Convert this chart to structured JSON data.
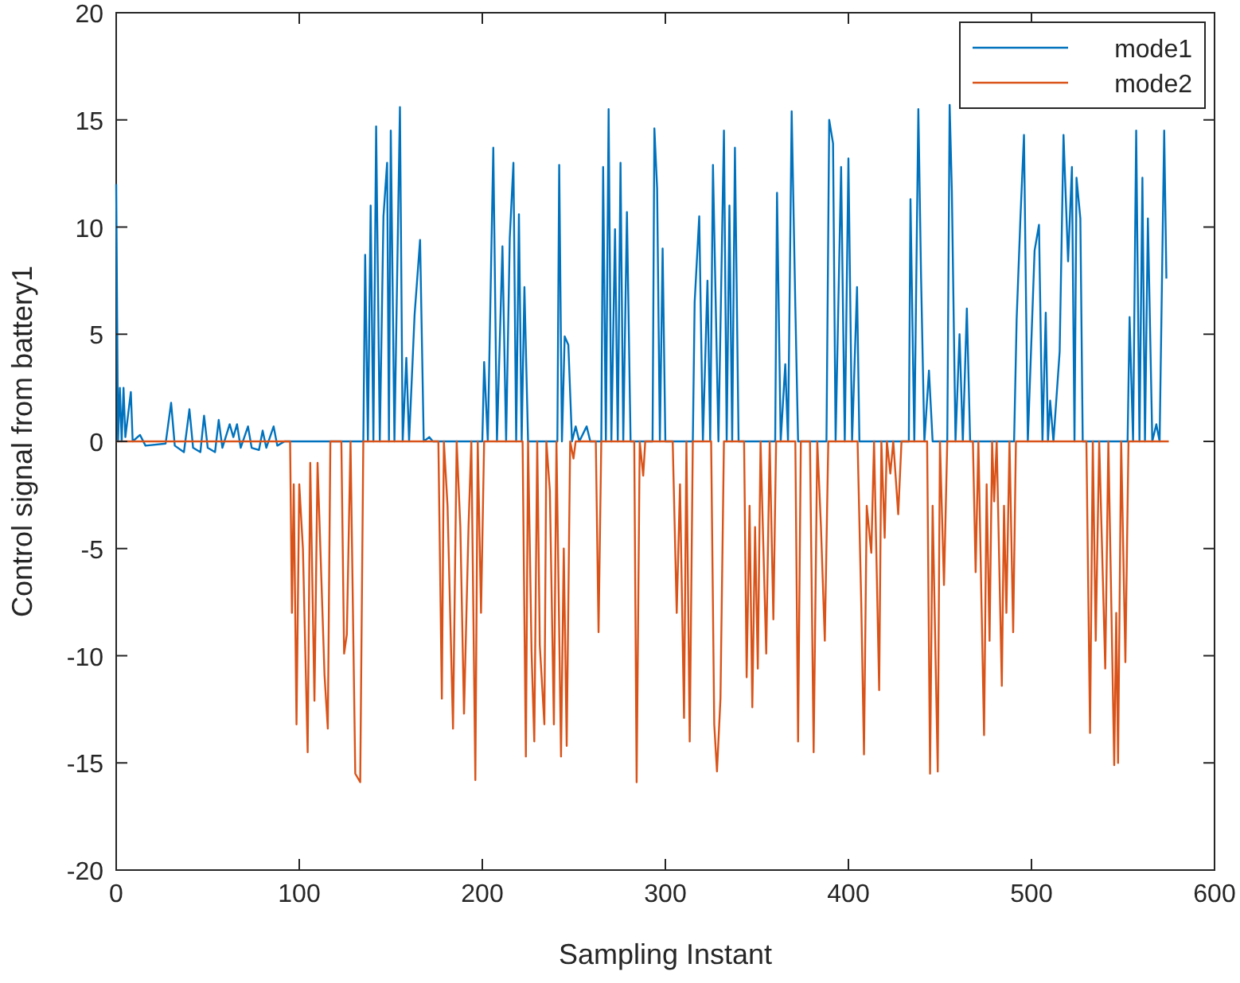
{
  "chart_data": {
    "type": "line",
    "xlabel": "Sampling Instant",
    "ylabel": "Control signal from battery1",
    "xlim": [
      0,
      600
    ],
    "ylim": [
      -20,
      20
    ],
    "xticks": [
      0,
      100,
      200,
      300,
      400,
      500,
      600
    ],
    "yticks": [
      -20,
      -15,
      -10,
      -5,
      0,
      5,
      10,
      15,
      20
    ],
    "legend": "top right",
    "series": [
      {
        "name": "mode1",
        "color": "#0072bd",
        "x": [
          0,
          1,
          2,
          3,
          4,
          5,
          8,
          9,
          13,
          16,
          27,
          30,
          32,
          37,
          40,
          42,
          46,
          48,
          50,
          54,
          56,
          58,
          62,
          64,
          66,
          68,
          72,
          74,
          78,
          80,
          82,
          86,
          88,
          92,
          135,
          136,
          137.5,
          139,
          140.5,
          142,
          144,
          146,
          148,
          149,
          150,
          152,
          155,
          156.5,
          158.5,
          160,
          163,
          166,
          168,
          171,
          173,
          200,
          201,
          203,
          206,
          208,
          211,
          213,
          215,
          217,
          218.5,
          220,
          221.5,
          223,
          225,
          241,
          242,
          243.5,
          245,
          247,
          249,
          251,
          253,
          257,
          259,
          265,
          266,
          267.5,
          269,
          270.5,
          272.5,
          274,
          275.5,
          277,
          279,
          281,
          293,
          294,
          295.5,
          297,
          298.5,
          300,
          315,
          316,
          318.5,
          320.5,
          323,
          324.5,
          326,
          329,
          332,
          333.5,
          335,
          336.5,
          338,
          340,
          360,
          361,
          363,
          365.5,
          367,
          369,
          371,
          372.5,
          388,
          389.5,
          391.6,
          393,
          396,
          398,
          400,
          402,
          404.7,
          406,
          433,
          433.9,
          436,
          438.2,
          439.7,
          441.5,
          444,
          446,
          454,
          455.3,
          456.5,
          458.5,
          460.7,
          462.5,
          464.7,
          466.5,
          490.5,
          491.9,
          494,
          495.9,
          498,
          501.7,
          504.1,
          506,
          507.8,
          509,
          510.2,
          512,
          515.4,
          517.5,
          520,
          522.1,
          523.5,
          524.6,
          526.7,
          528,
          552.5,
          553.6,
          555.5,
          557.2,
          559,
          560.6,
          562,
          563.6,
          566,
          568.2,
          570,
          572.5,
          573.7
        ],
        "values": [
          12,
          0,
          2.5,
          0,
          2.5,
          0.2,
          2.3,
          0,
          0.3,
          -0.2,
          -0.1,
          1.8,
          -0.2,
          -0.5,
          1.5,
          -0.3,
          -0.5,
          1.2,
          -0.3,
          -0.5,
          1,
          -0.3,
          0.8,
          0.2,
          0.8,
          -0.3,
          0.7,
          -0.3,
          -0.4,
          0.5,
          -0.3,
          0.7,
          -0.2,
          0,
          0,
          8.7,
          0,
          11,
          0,
          14.7,
          0,
          10.5,
          13,
          0,
          14.5,
          0,
          15.6,
          0,
          3.9,
          0,
          5.9,
          9.4,
          0,
          0.2,
          0,
          0,
          3.7,
          0,
          13.7,
          0,
          9.1,
          0,
          9.5,
          13,
          0,
          10.6,
          0,
          7.2,
          0,
          0,
          12.9,
          0,
          4.9,
          4.5,
          0,
          0.7,
          0,
          0.7,
          0,
          0,
          12.8,
          0,
          15.5,
          0,
          9.9,
          0,
          13,
          0,
          10.7,
          0,
          0,
          14.6,
          11.8,
          0,
          9,
          0,
          0,
          6.5,
          10.5,
          0,
          7.5,
          0,
          12.9,
          0,
          14.5,
          0,
          11,
          0,
          13.7,
          0,
          0,
          11.6,
          0,
          3.6,
          0,
          15.4,
          6.3,
          0,
          0,
          15,
          13.9,
          0,
          12.8,
          0,
          13.2,
          0,
          7.2,
          0,
          0,
          11.3,
          0,
          15.5,
          7.6,
          0,
          3.3,
          0,
          0,
          15.7,
          11.7,
          0,
          5,
          0,
          6.2,
          0,
          0,
          5.7,
          10.5,
          14.3,
          0,
          8.9,
          10.1,
          0,
          6,
          0,
          1.9,
          0,
          4.2,
          14.3,
          8.4,
          12.8,
          0,
          12.3,
          10.4,
          0,
          0,
          5.8,
          0,
          14.5,
          0,
          12.3,
          0,
          10.4,
          0,
          0.8,
          0,
          14.5,
          7.6
        ]
      },
      {
        "name": "mode2",
        "color": "#d95319",
        "x": [
          0,
          95,
          96,
          97,
          98.5,
          100,
          102,
          104.6,
          106,
          108.3,
          110,
          113.8,
          115.6,
          117,
          123,
          124.5,
          126,
          128,
          130.6,
          133.3,
          135,
          176,
          177.9,
          179,
          181,
          184,
          186,
          188,
          190,
          192.5,
          194,
          196.2,
          197.5,
          199.3,
          201,
          222,
          223.8,
          225,
          226.9,
          228.4,
          230,
          231.4,
          233.9,
          235,
          236.9,
          239.1,
          240.5,
          243,
          244.5,
          246.1,
          248,
          249.8,
          251,
          262,
          263.5,
          265,
          283,
          284.3,
          286,
          287.9,
          289,
          304,
          306.2,
          308,
          310.2,
          311.5,
          313.3,
          315,
          325,
          326.7,
          328.2,
          330.1,
          332,
          343,
          344.4,
          346,
          347.5,
          349,
          350.5,
          352,
          355.1,
          357,
          359,
          360.5,
          371,
          372.5,
          374,
          379,
          381,
          383,
          385,
          387.1,
          389,
          405,
          407,
          408.5,
          410,
          412.5,
          414,
          416.8,
          418,
          419.8,
          421,
          422.9,
          424.5,
          427.2,
          429,
          443,
          444.6,
          446,
          448.8,
          450,
          452.2,
          454,
          468,
          469.5,
          471,
          474.1,
          475.5,
          477.1,
          478.5,
          479.6,
          481,
          483.8,
          485,
          486.3,
          488,
          490,
          491.5,
          530,
          532,
          533.5,
          535.1,
          537,
          540.3,
          542,
          545.2,
          546.3,
          547.3,
          549,
          551.3,
          553,
          575
        ],
        "values": [
          0,
          0,
          -8,
          -2,
          -13.2,
          -2,
          -5,
          -14.5,
          -1,
          -12.1,
          -1,
          -10.9,
          -13.4,
          0,
          0,
          -9.9,
          -9,
          0,
          -15.5,
          -15.9,
          0,
          0,
          -12,
          0,
          -3,
          -13.4,
          0,
          -4,
          -12.7,
          -3.9,
          0,
          -15.8,
          0,
          -8,
          0,
          0,
          -14.7,
          0,
          -9.8,
          -14,
          0,
          -9.5,
          -13.2,
          0,
          -2.3,
          -13.2,
          0,
          -14.7,
          -5,
          -14.2,
          0,
          -0.8,
          0,
          0,
          -8.9,
          0,
          0,
          -15.9,
          0,
          -1.6,
          0,
          0,
          -8,
          -2,
          -12.9,
          0,
          -14,
          0,
          0,
          -13.2,
          -15.4,
          -12,
          0,
          0,
          -11,
          -3,
          -12.4,
          -4,
          -10.6,
          0,
          -9.9,
          0,
          -8.3,
          0,
          0,
          -14,
          0,
          0,
          -14.5,
          0,
          -4,
          -9.3,
          0,
          0,
          -7.5,
          -14.6,
          -3,
          -5.2,
          0,
          -11.6,
          0,
          -4.5,
          0,
          -1.5,
          0,
          -3.4,
          0,
          0,
          -15.5,
          -3,
          -15.4,
          0,
          -6.7,
          0,
          0,
          -6.1,
          0,
          -13.7,
          -2,
          -9.3,
          0,
          -2.8,
          0,
          -11.4,
          -3,
          -8,
          0,
          -8.9,
          0,
          0,
          -13.6,
          0,
          -9.3,
          0,
          -10.6,
          0,
          -15.1,
          -8,
          -15,
          0,
          -10.3,
          0,
          0
        ]
      }
    ]
  }
}
